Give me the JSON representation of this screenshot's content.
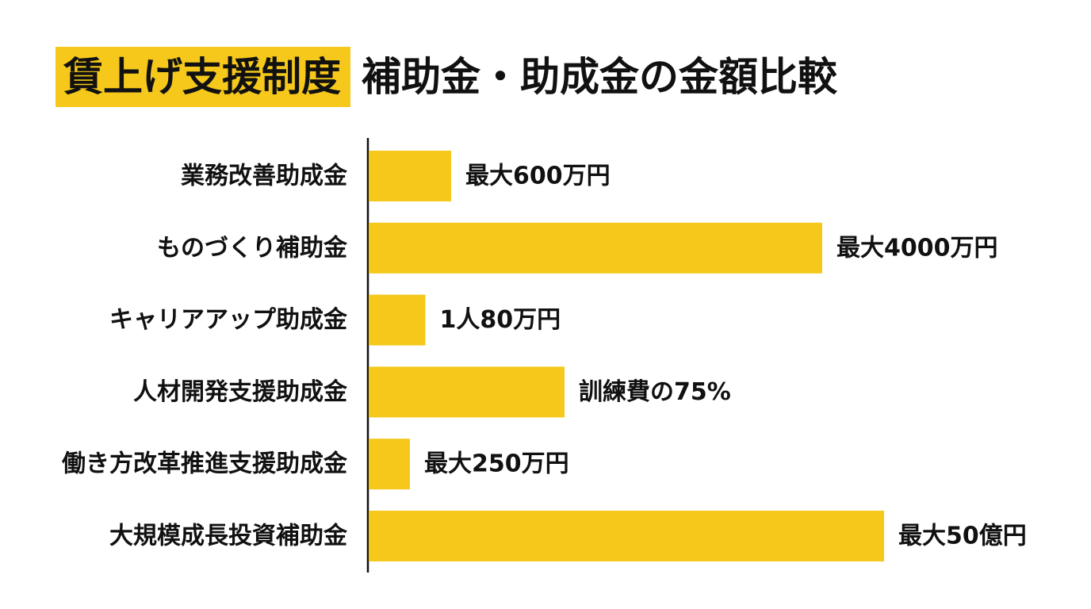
{
  "title": {
    "highlight": "賃上げ支援制度",
    "rest": "補助金・助成金の金額比較"
  },
  "colors": {
    "bar": "#f5c81b",
    "title_highlight": "#f5c81b",
    "axis": "#111111"
  },
  "chart_data": {
    "type": "bar",
    "orientation": "horizontal",
    "categories": [
      "業務改善助成金",
      "ものづくり補助金",
      "キャリアアップ助成金",
      "人材開発支援助成金",
      "働き方改革推進支援助成金",
      "大規模成長投資補助金"
    ],
    "data_labels": [
      "最大600万円",
      "最大4000万円",
      "1人80万円",
      "訓練費の75%",
      "最大250万円",
      "最大50億円"
    ],
    "relative_bar_length": [
      0.16,
      0.88,
      0.11,
      0.38,
      0.08,
      1.0
    ],
    "grid": false,
    "legend": "none"
  }
}
